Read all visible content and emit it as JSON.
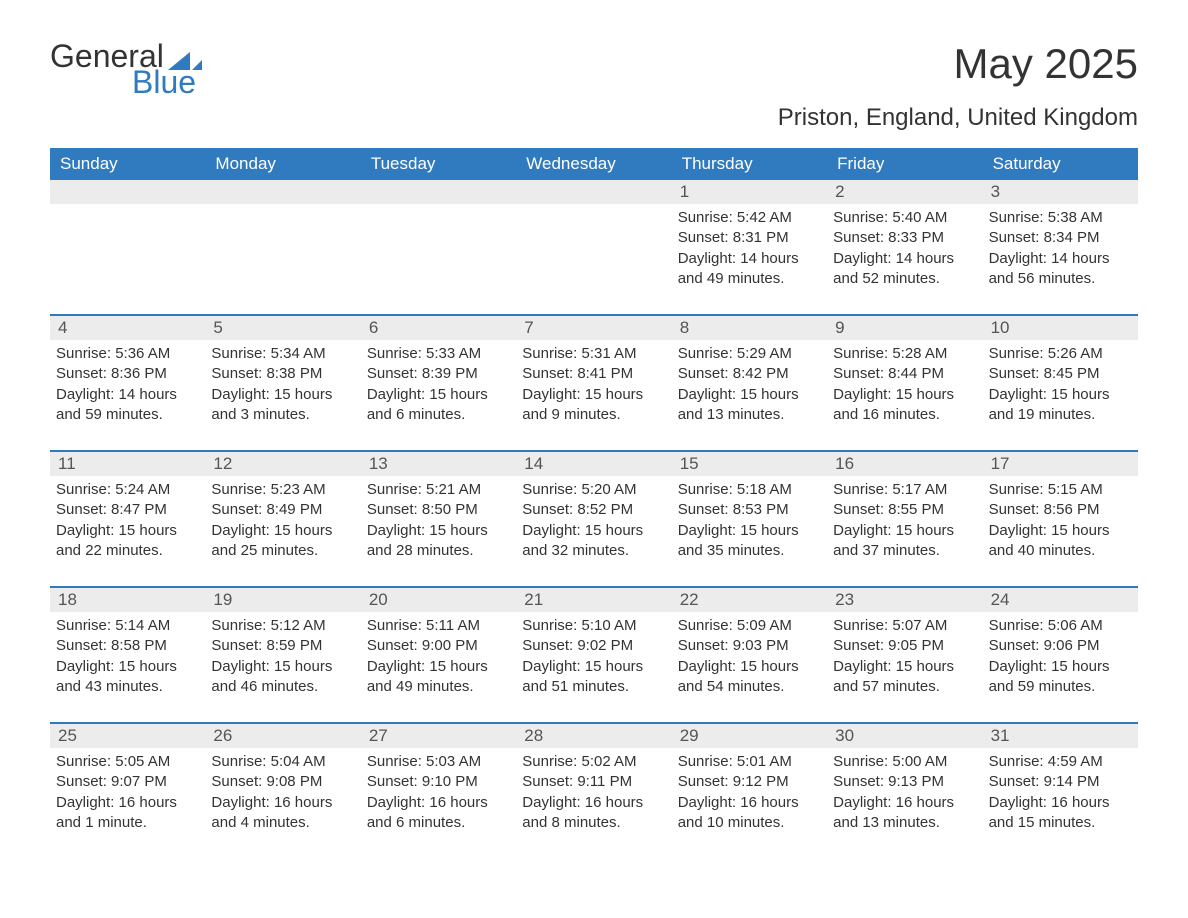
{
  "logo": {
    "word1": "General",
    "word2": "Blue",
    "word1_color": "#333333",
    "word2_color": "#307abf",
    "triangle_color": "#307abf"
  },
  "title": "May 2025",
  "subtitle": "Priston, England, United Kingdom",
  "colors": {
    "header_bg": "#307abf",
    "header_text": "#ffffff",
    "daynum_bg": "#ececec",
    "daynum_text": "#555555",
    "body_text": "#333333",
    "week_divider": "#307abf",
    "page_bg": "#ffffff"
  },
  "fontsizes": {
    "title": 42,
    "subtitle": 24,
    "dayhead": 17,
    "daynum": 17,
    "daytext": 15,
    "logo": 32
  },
  "day_headers": [
    "Sunday",
    "Monday",
    "Tuesday",
    "Wednesday",
    "Thursday",
    "Friday",
    "Saturday"
  ],
  "weeks": [
    [
      {
        "day": "",
        "lines": []
      },
      {
        "day": "",
        "lines": []
      },
      {
        "day": "",
        "lines": []
      },
      {
        "day": "",
        "lines": []
      },
      {
        "day": "1",
        "lines": [
          "Sunrise: 5:42 AM",
          "Sunset: 8:31 PM",
          "Daylight: 14 hours",
          "and 49 minutes."
        ]
      },
      {
        "day": "2",
        "lines": [
          "Sunrise: 5:40 AM",
          "Sunset: 8:33 PM",
          "Daylight: 14 hours",
          "and 52 minutes."
        ]
      },
      {
        "day": "3",
        "lines": [
          "Sunrise: 5:38 AM",
          "Sunset: 8:34 PM",
          "Daylight: 14 hours",
          "and 56 minutes."
        ]
      }
    ],
    [
      {
        "day": "4",
        "lines": [
          "Sunrise: 5:36 AM",
          "Sunset: 8:36 PM",
          "Daylight: 14 hours",
          "and 59 minutes."
        ]
      },
      {
        "day": "5",
        "lines": [
          "Sunrise: 5:34 AM",
          "Sunset: 8:38 PM",
          "Daylight: 15 hours",
          "and 3 minutes."
        ]
      },
      {
        "day": "6",
        "lines": [
          "Sunrise: 5:33 AM",
          "Sunset: 8:39 PM",
          "Daylight: 15 hours",
          "and 6 minutes."
        ]
      },
      {
        "day": "7",
        "lines": [
          "Sunrise: 5:31 AM",
          "Sunset: 8:41 PM",
          "Daylight: 15 hours",
          "and 9 minutes."
        ]
      },
      {
        "day": "8",
        "lines": [
          "Sunrise: 5:29 AM",
          "Sunset: 8:42 PM",
          "Daylight: 15 hours",
          "and 13 minutes."
        ]
      },
      {
        "day": "9",
        "lines": [
          "Sunrise: 5:28 AM",
          "Sunset: 8:44 PM",
          "Daylight: 15 hours",
          "and 16 minutes."
        ]
      },
      {
        "day": "10",
        "lines": [
          "Sunrise: 5:26 AM",
          "Sunset: 8:45 PM",
          "Daylight: 15 hours",
          "and 19 minutes."
        ]
      }
    ],
    [
      {
        "day": "11",
        "lines": [
          "Sunrise: 5:24 AM",
          "Sunset: 8:47 PM",
          "Daylight: 15 hours",
          "and 22 minutes."
        ]
      },
      {
        "day": "12",
        "lines": [
          "Sunrise: 5:23 AM",
          "Sunset: 8:49 PM",
          "Daylight: 15 hours",
          "and 25 minutes."
        ]
      },
      {
        "day": "13",
        "lines": [
          "Sunrise: 5:21 AM",
          "Sunset: 8:50 PM",
          "Daylight: 15 hours",
          "and 28 minutes."
        ]
      },
      {
        "day": "14",
        "lines": [
          "Sunrise: 5:20 AM",
          "Sunset: 8:52 PM",
          "Daylight: 15 hours",
          "and 32 minutes."
        ]
      },
      {
        "day": "15",
        "lines": [
          "Sunrise: 5:18 AM",
          "Sunset: 8:53 PM",
          "Daylight: 15 hours",
          "and 35 minutes."
        ]
      },
      {
        "day": "16",
        "lines": [
          "Sunrise: 5:17 AM",
          "Sunset: 8:55 PM",
          "Daylight: 15 hours",
          "and 37 minutes."
        ]
      },
      {
        "day": "17",
        "lines": [
          "Sunrise: 5:15 AM",
          "Sunset: 8:56 PM",
          "Daylight: 15 hours",
          "and 40 minutes."
        ]
      }
    ],
    [
      {
        "day": "18",
        "lines": [
          "Sunrise: 5:14 AM",
          "Sunset: 8:58 PM",
          "Daylight: 15 hours",
          "and 43 minutes."
        ]
      },
      {
        "day": "19",
        "lines": [
          "Sunrise: 5:12 AM",
          "Sunset: 8:59 PM",
          "Daylight: 15 hours",
          "and 46 minutes."
        ]
      },
      {
        "day": "20",
        "lines": [
          "Sunrise: 5:11 AM",
          "Sunset: 9:00 PM",
          "Daylight: 15 hours",
          "and 49 minutes."
        ]
      },
      {
        "day": "21",
        "lines": [
          "Sunrise: 5:10 AM",
          "Sunset: 9:02 PM",
          "Daylight: 15 hours",
          "and 51 minutes."
        ]
      },
      {
        "day": "22",
        "lines": [
          "Sunrise: 5:09 AM",
          "Sunset: 9:03 PM",
          "Daylight: 15 hours",
          "and 54 minutes."
        ]
      },
      {
        "day": "23",
        "lines": [
          "Sunrise: 5:07 AM",
          "Sunset: 9:05 PM",
          "Daylight: 15 hours",
          "and 57 minutes."
        ]
      },
      {
        "day": "24",
        "lines": [
          "Sunrise: 5:06 AM",
          "Sunset: 9:06 PM",
          "Daylight: 15 hours",
          "and 59 minutes."
        ]
      }
    ],
    [
      {
        "day": "25",
        "lines": [
          "Sunrise: 5:05 AM",
          "Sunset: 9:07 PM",
          "Daylight: 16 hours",
          "and 1 minute."
        ]
      },
      {
        "day": "26",
        "lines": [
          "Sunrise: 5:04 AM",
          "Sunset: 9:08 PM",
          "Daylight: 16 hours",
          "and 4 minutes."
        ]
      },
      {
        "day": "27",
        "lines": [
          "Sunrise: 5:03 AM",
          "Sunset: 9:10 PM",
          "Daylight: 16 hours",
          "and 6 minutes."
        ]
      },
      {
        "day": "28",
        "lines": [
          "Sunrise: 5:02 AM",
          "Sunset: 9:11 PM",
          "Daylight: 16 hours",
          "and 8 minutes."
        ]
      },
      {
        "day": "29",
        "lines": [
          "Sunrise: 5:01 AM",
          "Sunset: 9:12 PM",
          "Daylight: 16 hours",
          "and 10 minutes."
        ]
      },
      {
        "day": "30",
        "lines": [
          "Sunrise: 5:00 AM",
          "Sunset: 9:13 PM",
          "Daylight: 16 hours",
          "and 13 minutes."
        ]
      },
      {
        "day": "31",
        "lines": [
          "Sunrise: 4:59 AM",
          "Sunset: 9:14 PM",
          "Daylight: 16 hours",
          "and 15 minutes."
        ]
      }
    ]
  ]
}
